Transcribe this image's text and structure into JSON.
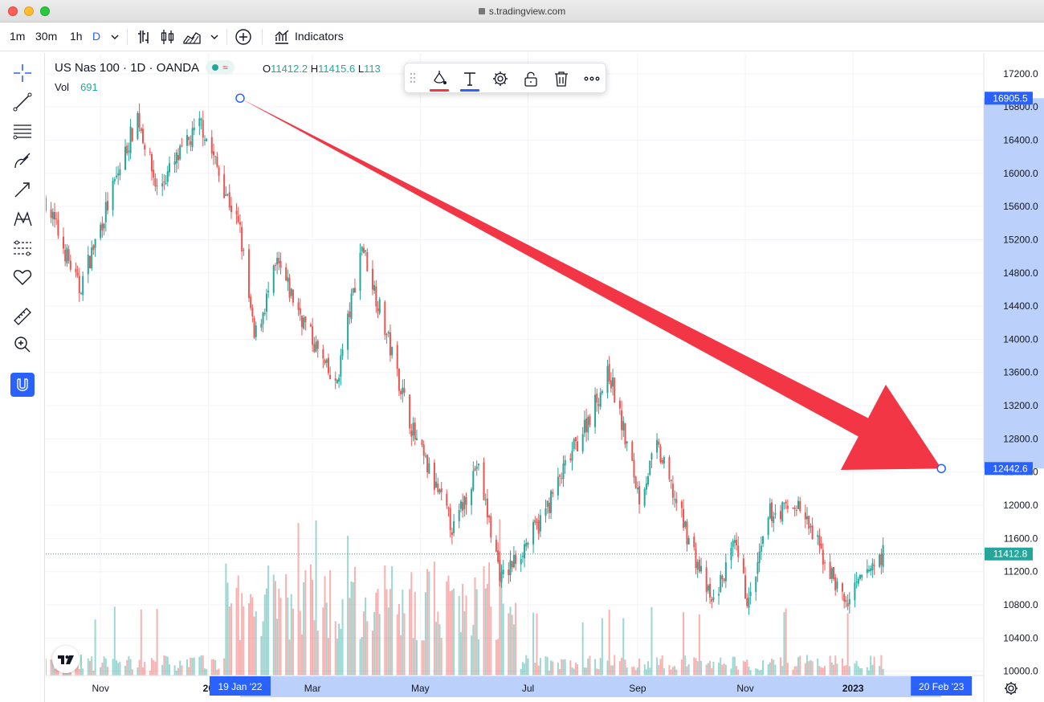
{
  "window": {
    "url": "s.tradingview.com"
  },
  "toolbar": {
    "intervals": [
      "1m",
      "30m",
      "1h",
      "D"
    ],
    "indicators_label": "Indicators"
  },
  "legend": {
    "symbol": "US Nas 100 · 1D · OANDA",
    "open_key": "O",
    "open": "11412.2",
    "high_key": "H",
    "high": "11415.6",
    "low_key": "L",
    "low": "113",
    "vol_label": "Vol",
    "vol_value": "691"
  },
  "colors": {
    "up": "#26a69a",
    "down": "#ef5350",
    "arrow": "#f23645",
    "accent": "#2962ff",
    "axis_highlight": "#bbd0fa"
  },
  "price_axis": {
    "ticks": [
      "17200.0",
      "16800.0",
      "16400.0",
      "16000.0",
      "15600.0",
      "15200.0",
      "14800.0",
      "14400.0",
      "14000.0",
      "13600.0",
      "13200.0",
      "12800.0",
      "12400.0",
      "12000.0",
      "11600.0",
      "11200.0",
      "10800.0",
      "10400.0",
      "10000.0"
    ],
    "labels": [
      {
        "value": 16905.5,
        "text": "16905.5",
        "color": "#2962ff"
      },
      {
        "value": 12442.6,
        "text": "12442.6",
        "color": "#2962ff"
      },
      {
        "value": 11412.8,
        "text": "11412.8",
        "color": "#26a69a"
      }
    ]
  },
  "time_axis": {
    "ticks": [
      {
        "text": "Nov",
        "bold": false
      },
      {
        "text": "20",
        "bold": true
      },
      {
        "text": "Mar",
        "bold": false
      },
      {
        "text": "May",
        "bold": false
      },
      {
        "text": "Jul",
        "bold": false
      },
      {
        "text": "Sep",
        "bold": false
      },
      {
        "text": "Nov",
        "bold": false
      },
      {
        "text": "2023",
        "bold": true
      }
    ],
    "highlight_start": "19 Jan '22",
    "highlight_end": "20 Feb '23"
  },
  "drawing": {
    "type": "arrow",
    "start": {
      "date": "19 Jan '22",
      "price": 16905.5
    },
    "end": {
      "date": "20 Feb '23",
      "price": 12442.6
    }
  },
  "chart_data": {
    "type": "candlestick",
    "title": "US Nas 100 · 1D · OANDA",
    "ylim": [
      9900,
      17450
    ],
    "x_range": [
      "Oct 2021",
      "Feb 2023"
    ],
    "last_price": 11412.8,
    "path_anchors": [
      {
        "date": "2021-10-01",
        "close": 15680
      },
      {
        "date": "2021-10-20",
        "close": 14600
      },
      {
        "date": "2021-11-22",
        "close": 16700
      },
      {
        "date": "2021-12-03",
        "close": 15800
      },
      {
        "date": "2021-12-28",
        "close": 16600
      },
      {
        "date": "2022-01-19",
        "close": 15300
      },
      {
        "date": "2022-01-27",
        "close": 14000
      },
      {
        "date": "2022-02-09",
        "close": 14900
      },
      {
        "date": "2022-03-14",
        "close": 13400
      },
      {
        "date": "2022-03-29",
        "close": 15150
      },
      {
        "date": "2022-04-28",
        "close": 12800
      },
      {
        "date": "2022-05-20",
        "close": 11700
      },
      {
        "date": "2022-06-02",
        "close": 12500
      },
      {
        "date": "2022-06-16",
        "close": 11100
      },
      {
        "date": "2022-07-08",
        "close": 11800
      },
      {
        "date": "2022-08-16",
        "close": 13600
      },
      {
        "date": "2022-09-02",
        "close": 12100
      },
      {
        "date": "2022-09-12",
        "close": 12700
      },
      {
        "date": "2022-10-13",
        "close": 10800
      },
      {
        "date": "2022-10-26",
        "close": 11500
      },
      {
        "date": "2022-11-03",
        "close": 10800
      },
      {
        "date": "2022-11-15",
        "close": 11900
      },
      {
        "date": "2022-12-01",
        "close": 12000
      },
      {
        "date": "2022-12-28",
        "close": 10800
      },
      {
        "date": "2023-01-09",
        "close": 11200
      },
      {
        "date": "2023-01-18",
        "close": 11412
      }
    ]
  }
}
